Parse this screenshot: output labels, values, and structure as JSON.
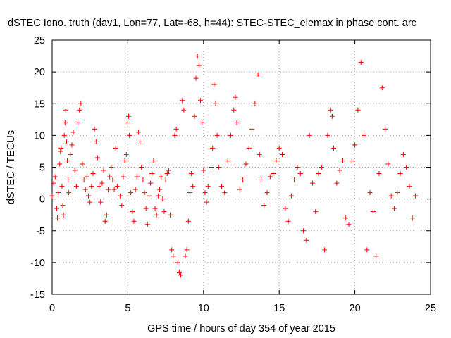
{
  "chart_data": {
    "type": "scatter",
    "title": "dSTEC Iono. truth (dav1, Lon=77, Lat=-68, h=44): STEC-STEC_elemax in phase cont. arc",
    "xlabel": "GPS time / hours of day 354 of year 2015",
    "ylabel": "dSTEC  / TECUs",
    "xlim": [
      0,
      25
    ],
    "ylim": [
      -15,
      25
    ],
    "xticks": [
      "0",
      "5",
      "10",
      "15",
      "20",
      "25"
    ],
    "yticks": [
      "-15",
      "-10",
      "-5",
      "0",
      "5",
      "10",
      "15",
      "20",
      "25"
    ],
    "grid": true,
    "marker": "+",
    "color": "#ff0000",
    "series": [
      {
        "values": [
          [
            0.0,
            0.5
          ],
          [
            0.1,
            2.5
          ],
          [
            0.2,
            3.5
          ],
          [
            0.3,
            -1.5
          ],
          [
            0.35,
            -3.0
          ],
          [
            0.4,
            1.0
          ],
          [
            0.5,
            5.5
          ],
          [
            0.55,
            7.5
          ],
          [
            0.6,
            8.0
          ],
          [
            0.65,
            2.0
          ],
          [
            0.7,
            -1.0
          ],
          [
            0.75,
            -2.5
          ],
          [
            0.8,
            10.0
          ],
          [
            0.85,
            12.0
          ],
          [
            0.9,
            14.0
          ],
          [
            0.95,
            9.0
          ],
          [
            1.0,
            6.0
          ],
          [
            1.05,
            3.0
          ],
          [
            1.1,
            1.0
          ],
          [
            1.2,
            7.0
          ],
          [
            1.3,
            8.5
          ],
          [
            1.4,
            10.5
          ],
          [
            1.5,
            4.5
          ],
          [
            1.6,
            2.0
          ],
          [
            1.7,
            12.0
          ],
          [
            1.8,
            14.0
          ],
          [
            1.9,
            15.0
          ],
          [
            2.0,
            5.5
          ],
          [
            2.1,
            3.0
          ],
          [
            2.2,
            1.5
          ],
          [
            2.3,
            3.5
          ],
          [
            2.4,
            0.5
          ],
          [
            2.5,
            -0.5
          ],
          [
            2.6,
            2.0
          ],
          [
            2.7,
            4.0
          ],
          [
            2.8,
            11.0
          ],
          [
            2.9,
            9.0
          ],
          [
            3.0,
            6.5
          ],
          [
            3.1,
            2.0
          ],
          [
            3.2,
            -0.5
          ],
          [
            3.3,
            2.5
          ],
          [
            3.4,
            4.5
          ],
          [
            3.5,
            -3.5
          ],
          [
            3.6,
            -2.5
          ],
          [
            3.7,
            1.5
          ],
          [
            3.8,
            3.5
          ],
          [
            3.9,
            5.0
          ],
          [
            4.0,
            3.0
          ],
          [
            4.1,
            1.5
          ],
          [
            4.2,
            8.0
          ],
          [
            4.3,
            2.0
          ],
          [
            4.5,
            0.5
          ],
          [
            4.6,
            -1.0
          ],
          [
            4.7,
            3.5
          ],
          [
            4.8,
            6.0
          ],
          [
            4.9,
            7.0
          ],
          [
            5.0,
            12.0
          ],
          [
            5.05,
            13.0
          ],
          [
            5.1,
            10.0
          ],
          [
            5.2,
            1.0
          ],
          [
            5.3,
            -2.0
          ],
          [
            5.4,
            -3.5
          ],
          [
            5.5,
            1.5
          ],
          [
            5.6,
            3.5
          ],
          [
            5.7,
            10.5
          ],
          [
            5.8,
            9.0
          ],
          [
            5.9,
            5.0
          ],
          [
            6.0,
            3.0
          ],
          [
            6.1,
            1.0
          ],
          [
            6.2,
            -1.5
          ],
          [
            6.3,
            -4.0
          ],
          [
            6.4,
            0.5
          ],
          [
            6.5,
            2.5
          ],
          [
            6.6,
            4.0
          ],
          [
            6.7,
            6.0
          ],
          [
            6.8,
            -1.5
          ],
          [
            6.9,
            -2.5
          ],
          [
            7.0,
            0.5
          ],
          [
            7.1,
            1.5
          ],
          [
            7.2,
            3.5
          ],
          [
            7.3,
            0.0
          ],
          [
            7.4,
            -2.0
          ],
          [
            7.5,
            3.0
          ],
          [
            7.6,
            4.0
          ],
          [
            7.7,
            4.5
          ],
          [
            7.8,
            -2.5
          ],
          [
            7.9,
            -8.0
          ],
          [
            8.0,
            -9.0
          ],
          [
            8.1,
            10.0
          ],
          [
            8.2,
            11.0
          ],
          [
            8.3,
            -10.0
          ],
          [
            8.4,
            -11.5
          ],
          [
            8.5,
            -12.0
          ],
          [
            8.6,
            15.5
          ],
          [
            8.7,
            14.0
          ],
          [
            8.8,
            -9.0
          ],
          [
            8.9,
            -8.0
          ],
          [
            9.0,
            -3.5
          ],
          [
            9.1,
            1.0
          ],
          [
            9.2,
            4.0
          ],
          [
            9.3,
            2.0
          ],
          [
            9.4,
            13.0
          ],
          [
            9.5,
            19.0
          ],
          [
            9.6,
            22.5
          ],
          [
            9.7,
            21.0
          ],
          [
            9.8,
            15.5
          ],
          [
            9.9,
            12.0
          ],
          [
            10.0,
            4.5
          ],
          [
            10.1,
            1.0
          ],
          [
            10.2,
            -0.5
          ],
          [
            10.3,
            2.0
          ],
          [
            10.5,
            5.0
          ],
          [
            10.6,
            8.0
          ],
          [
            10.7,
            18.0
          ],
          [
            10.8,
            15.0
          ],
          [
            10.9,
            10.0
          ],
          [
            11.0,
            5.0
          ],
          [
            11.2,
            2.0
          ],
          [
            11.4,
            1.0
          ],
          [
            11.6,
            6.0
          ],
          [
            11.8,
            10.0
          ],
          [
            12.0,
            14.0
          ],
          [
            12.1,
            16.0
          ],
          [
            12.2,
            12.0
          ],
          [
            12.4,
            1.5
          ],
          [
            12.6,
            3.0
          ],
          [
            12.8,
            5.5
          ],
          [
            13.0,
            8.0
          ],
          [
            13.2,
            11.0
          ],
          [
            13.4,
            15.0
          ],
          [
            13.6,
            19.5
          ],
          [
            13.7,
            7.0
          ],
          [
            13.8,
            3.0
          ],
          [
            14.0,
            -1.0
          ],
          [
            14.2,
            1.0
          ],
          [
            14.4,
            3.5
          ],
          [
            14.6,
            4.0
          ],
          [
            14.8,
            6.0
          ],
          [
            15.0,
            8.0
          ],
          [
            15.2,
            7.0
          ],
          [
            15.4,
            -1.5
          ],
          [
            15.6,
            -3.5
          ],
          [
            15.8,
            0.5
          ],
          [
            16.0,
            3.0
          ],
          [
            16.2,
            5.0
          ],
          [
            16.4,
            4.0
          ],
          [
            16.6,
            -5.0
          ],
          [
            16.8,
            -6.5
          ],
          [
            17.0,
            10.0
          ],
          [
            17.2,
            2.5
          ],
          [
            17.4,
            -2.0
          ],
          [
            17.6,
            4.0
          ],
          [
            17.8,
            5.0
          ],
          [
            18.0,
            -8.0
          ],
          [
            18.2,
            10.0
          ],
          [
            18.4,
            14.0
          ],
          [
            18.5,
            13.0
          ],
          [
            18.6,
            8.0
          ],
          [
            18.8,
            2.5
          ],
          [
            19.0,
            4.5
          ],
          [
            19.2,
            6.0
          ],
          [
            19.4,
            -3.0
          ],
          [
            19.6,
            -4.0
          ],
          [
            19.8,
            6.0
          ],
          [
            20.0,
            8.5
          ],
          [
            20.2,
            14.0
          ],
          [
            20.4,
            21.5
          ],
          [
            20.6,
            10.0
          ],
          [
            20.8,
            -8.0
          ],
          [
            21.0,
            1.0
          ],
          [
            21.2,
            -2.0
          ],
          [
            21.4,
            -9.0
          ],
          [
            21.6,
            4.0
          ],
          [
            21.8,
            17.5
          ],
          [
            22.0,
            11.0
          ],
          [
            22.2,
            5.5
          ],
          [
            22.4,
            0.5
          ],
          [
            22.6,
            -1.5
          ],
          [
            22.8,
            1.0
          ],
          [
            23.0,
            4.0
          ],
          [
            23.2,
            7.0
          ],
          [
            23.4,
            5.0
          ],
          [
            23.6,
            2.0
          ],
          [
            23.8,
            -3.0
          ],
          [
            24.0,
            0.5
          ]
        ]
      }
    ]
  }
}
